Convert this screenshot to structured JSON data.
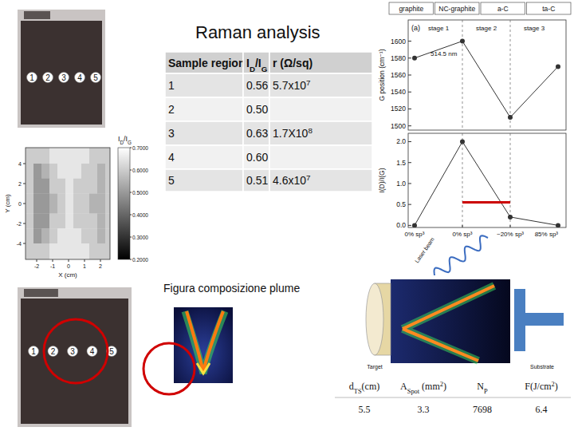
{
  "header": {
    "title": "Raman analysis"
  },
  "photos": {
    "top": {
      "labels": [
        "1",
        "2",
        "3",
        "4",
        "5"
      ]
    },
    "bottom": {
      "labels": [
        "1",
        "2",
        "3",
        "4",
        "5"
      ]
    }
  },
  "sample_table": {
    "header": [
      [
        {
          "text": "Sample region"
        }
      ],
      [
        {
          "text": "I"
        },
        {
          "text": "D",
          "style": "sub"
        },
        {
          "text": "/I"
        },
        {
          "text": "G",
          "style": "sub"
        }
      ],
      [
        {
          "text": "r (Ω/sq)"
        }
      ]
    ],
    "rows": [
      [
        "1",
        "0.56",
        [
          {
            "text": "5.7x10"
          },
          {
            "text": "7",
            "style": "sup"
          }
        ]
      ],
      [
        "2",
        "0.50",
        null
      ],
      [
        "3",
        "0.63",
        [
          {
            "text": "1.7X10"
          },
          {
            "text": "8",
            "style": "sup"
          }
        ]
      ],
      [
        "4",
        "0.60",
        null
      ],
      [
        "5",
        "0.51",
        [
          {
            "text": "4.6x10"
          },
          {
            "text": "7",
            "style": "sup"
          }
        ]
      ]
    ]
  },
  "chart_data": [
    {
      "type": "heatmap",
      "x_label": "X (cm)",
      "y_label": "Y (cm)",
      "xlim": [
        -2.7,
        2.6
      ],
      "ylim": [
        -5.6,
        5.6
      ],
      "xticks": [
        -2,
        -1,
        0,
        1,
        2
      ],
      "yticks": [
        -4,
        -2,
        0,
        2,
        4
      ],
      "x_edges": [
        -2.7,
        -2.2,
        -1.7,
        -1.2,
        -0.7,
        -0.2,
        0.3,
        0.8,
        1.3,
        1.8,
        2.3,
        2.6
      ],
      "y_edges": [
        5.6,
        4,
        2.5,
        1,
        -1,
        -2.5,
        -4,
        -5.6
      ],
      "cells": [
        [
          0.6,
          0.6,
          0.6,
          0.65,
          0.65,
          0.65,
          0.65,
          0.65,
          0.6,
          0.6,
          0.6
        ],
        [
          0.6,
          0.5,
          0.55,
          0.6,
          0.65,
          0.65,
          0.65,
          0.6,
          0.6,
          0.55,
          0.6
        ],
        [
          0.6,
          0.5,
          0.5,
          0.6,
          0.6,
          0.65,
          0.6,
          0.6,
          0.6,
          0.55,
          0.6
        ],
        [
          0.6,
          0.5,
          0.5,
          0.55,
          0.6,
          0.65,
          0.6,
          0.6,
          0.55,
          0.55,
          0.6
        ],
        [
          0.6,
          0.5,
          0.5,
          0.6,
          0.6,
          0.65,
          0.6,
          0.6,
          0.6,
          0.55,
          0.6
        ],
        [
          0.6,
          0.5,
          0.55,
          0.6,
          0.65,
          0.65,
          0.65,
          0.6,
          0.6,
          0.55,
          0.6
        ],
        [
          0.6,
          0.6,
          0.6,
          0.65,
          0.65,
          0.65,
          0.65,
          0.65,
          0.6,
          0.6,
          0.6
        ]
      ],
      "colorbar": {
        "label": [
          {
            "text": "I"
          },
          {
            "text": "D",
            "style": "sub"
          },
          {
            "text": "/I"
          },
          {
            "text": "G",
            "style": "sub"
          }
        ],
        "range": [
          0.2,
          0.7
        ],
        "ticks": [
          {
            "value": 0.7,
            "label": "0.7000"
          },
          {
            "value": 0.6,
            "label": "0.6000"
          },
          {
            "value": 0.5,
            "label": "0.5000"
          },
          {
            "value": 0.4,
            "label": "0.4000"
          },
          {
            "value": 0.3,
            "label": "0.3000"
          },
          {
            "value": 0.2,
            "label": "0.2000"
          }
        ]
      }
    },
    {
      "type": "line",
      "categories": [
        "0% sp³",
        "0% sp³",
        "~20% sp³",
        "85% sp³"
      ],
      "phases": [
        "graphite",
        "NC-graphite",
        "a-C",
        "ta-C"
      ],
      "stages": [
        "stage 1",
        "stage 2",
        "stage 3"
      ],
      "panels": [
        {
          "label": "(a)",
          "annotation": "514.5 nm",
          "y_label": "G position (cm⁻¹)",
          "ylim": [
            1495,
            1625
          ],
          "yticks": [
            1500,
            1520,
            1540,
            1560,
            1580,
            1600
          ],
          "series": [
            {
              "color": "#333333",
              "marker": "circle",
              "line_style": "solid",
              "values": [
                1580,
                1600,
                1510,
                1570
              ]
            }
          ]
        },
        {
          "y_label": "I(D)/I(G)",
          "ylim": [
            -0.05,
            2.2
          ],
          "yticks": [
            {
              "value": 0,
              "label": "0.0"
            },
            {
              "value": 0.5,
              "label": "0.5"
            },
            {
              "value": 1,
              "label": "1.0"
            },
            {
              "value": 1.5,
              "label": "1.5"
            },
            {
              "value": 2,
              "label": "2.0"
            }
          ],
          "series": [
            {
              "color": "#333333",
              "marker": "circle",
              "line_style": "solid",
              "values": [
                0,
                2.0,
                0.2,
                0
              ]
            }
          ],
          "reference_line": {
            "value": 0.55,
            "x": [
              1,
              2
            ],
            "color": "#cc0000"
          }
        }
      ]
    }
  ],
  "plume": {
    "caption": "Figura composizione plume"
  },
  "diagram": {
    "laser": "Laser beam",
    "target": "Target",
    "substrate": "Substrate"
  },
  "params_table": {
    "header": [
      [
        {
          "text": "d"
        },
        {
          "text": "TS",
          "style": "sub"
        },
        {
          "text": "(cm)"
        }
      ],
      [
        {
          "text": "A"
        },
        {
          "text": "Spot",
          "style": "sub"
        },
        {
          "text": " (mm"
        },
        {
          "text": "2",
          "style": "sup"
        },
        {
          "text": ")"
        }
      ],
      [
        {
          "text": "N"
        },
        {
          "text": "P",
          "style": "sub"
        }
      ],
      [
        {
          "text": "F(J/cm"
        },
        {
          "text": "2",
          "style": "sup"
        },
        {
          "text": ")"
        }
      ]
    ],
    "rows": [
      [
        "5.5",
        "3.3",
        "7698",
        "6.4"
      ]
    ]
  }
}
